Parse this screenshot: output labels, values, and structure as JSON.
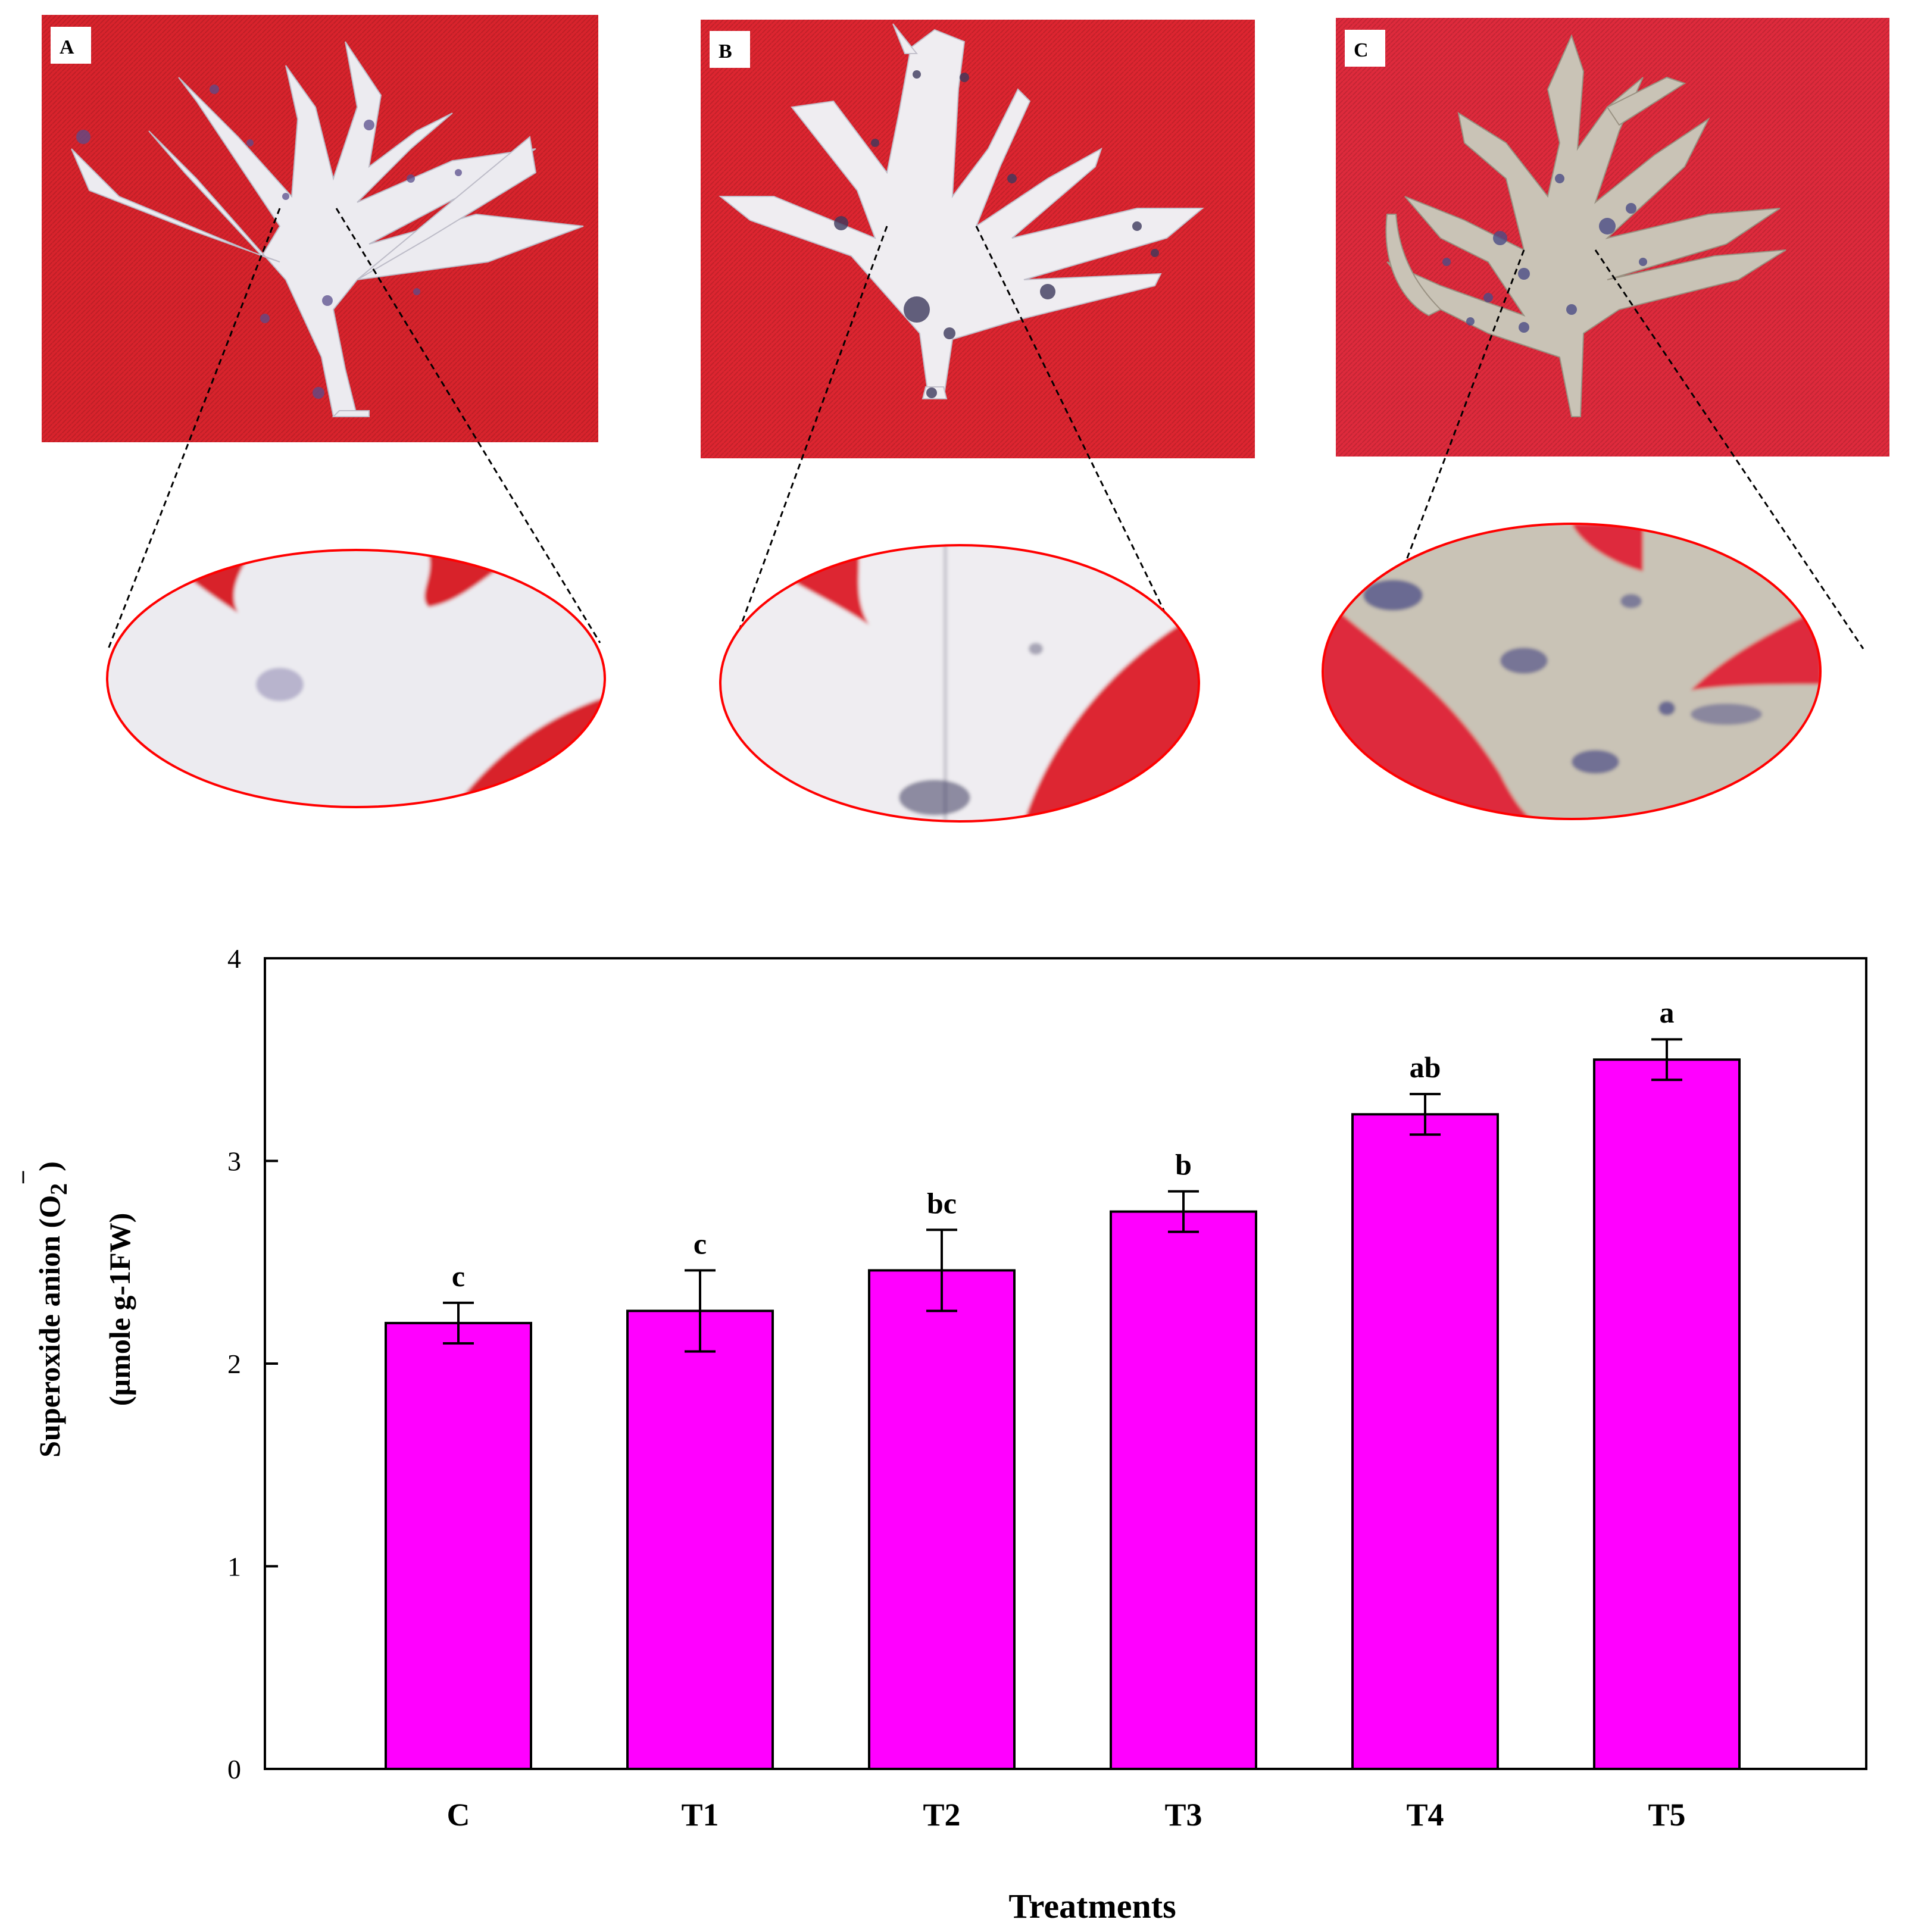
{
  "panels": [
    {
      "label": "A",
      "background": "#d8232c",
      "leaf": "#ecebf0",
      "stain": "#5a4d8c"
    },
    {
      "label": "B",
      "background": "#dd2530",
      "leaf": "#efedf1",
      "stain": "#3d3a5e"
    },
    {
      "label": "C",
      "background": "#de2a3c",
      "leaf": "#c9c3b6",
      "stain": "#4b4c86"
    }
  ],
  "colors": {
    "bar_fill": "#ff00ff",
    "bar_stroke": "#000000",
    "zoom_outline": "#ff0000"
  },
  "chart_data": {
    "type": "bar",
    "categories": [
      "C",
      "T1",
      "T2",
      "T3",
      "T4",
      "T5"
    ],
    "values": [
      2.2,
      2.26,
      2.46,
      2.75,
      3.23,
      3.5
    ],
    "errors": [
      0.1,
      0.2,
      0.2,
      0.1,
      0.1,
      0.1
    ],
    "significance": [
      "c",
      "c",
      "bc",
      "b",
      "ab",
      "a"
    ],
    "xlabel": "Treatments",
    "ylabel_line1": "Superoxide anion (O",
    "ylabel_sub": "2",
    "ylabel_sup": "¯",
    "ylabel_close": ")",
    "ylabel_line2": "(µmole g-1FW)",
    "ylim": [
      0,
      4
    ],
    "yticks": [
      "0",
      "1",
      "2",
      "3",
      "4"
    ],
    "grid": false,
    "legend": "none"
  }
}
